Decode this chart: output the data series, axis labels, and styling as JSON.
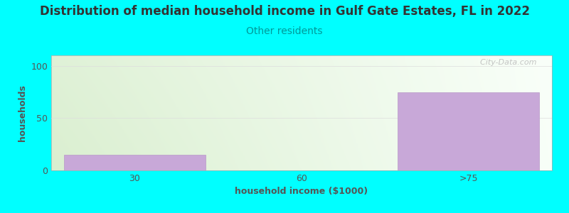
{
  "title": "Distribution of median household income in Gulf Gate Estates, FL in 2022",
  "subtitle": "Other residents",
  "xlabel": "household income ($1000)",
  "ylabel": "households",
  "categories": [
    "30",
    "60",
    ">75"
  ],
  "values": [
    15,
    0,
    75
  ],
  "bar_color": "#c8a8d8",
  "bar_edgecolor": "#b898c8",
  "background_color": "#00ffff",
  "plot_bg_color_left": "#daefd0",
  "plot_bg_color_right": "#f8fff8",
  "yticks": [
    0,
    50,
    100
  ],
  "ylim": [
    0,
    110
  ],
  "title_color": "#333333",
  "subtitle_color": "#009999",
  "axis_label_color": "#555555",
  "tick_color": "#555555",
  "watermark_text": "  City-Data.com",
  "watermark_color": "#bbbbbb",
  "title_fontsize": 12,
  "subtitle_fontsize": 10,
  "label_fontsize": 9,
  "grid_color": "#dddddd"
}
